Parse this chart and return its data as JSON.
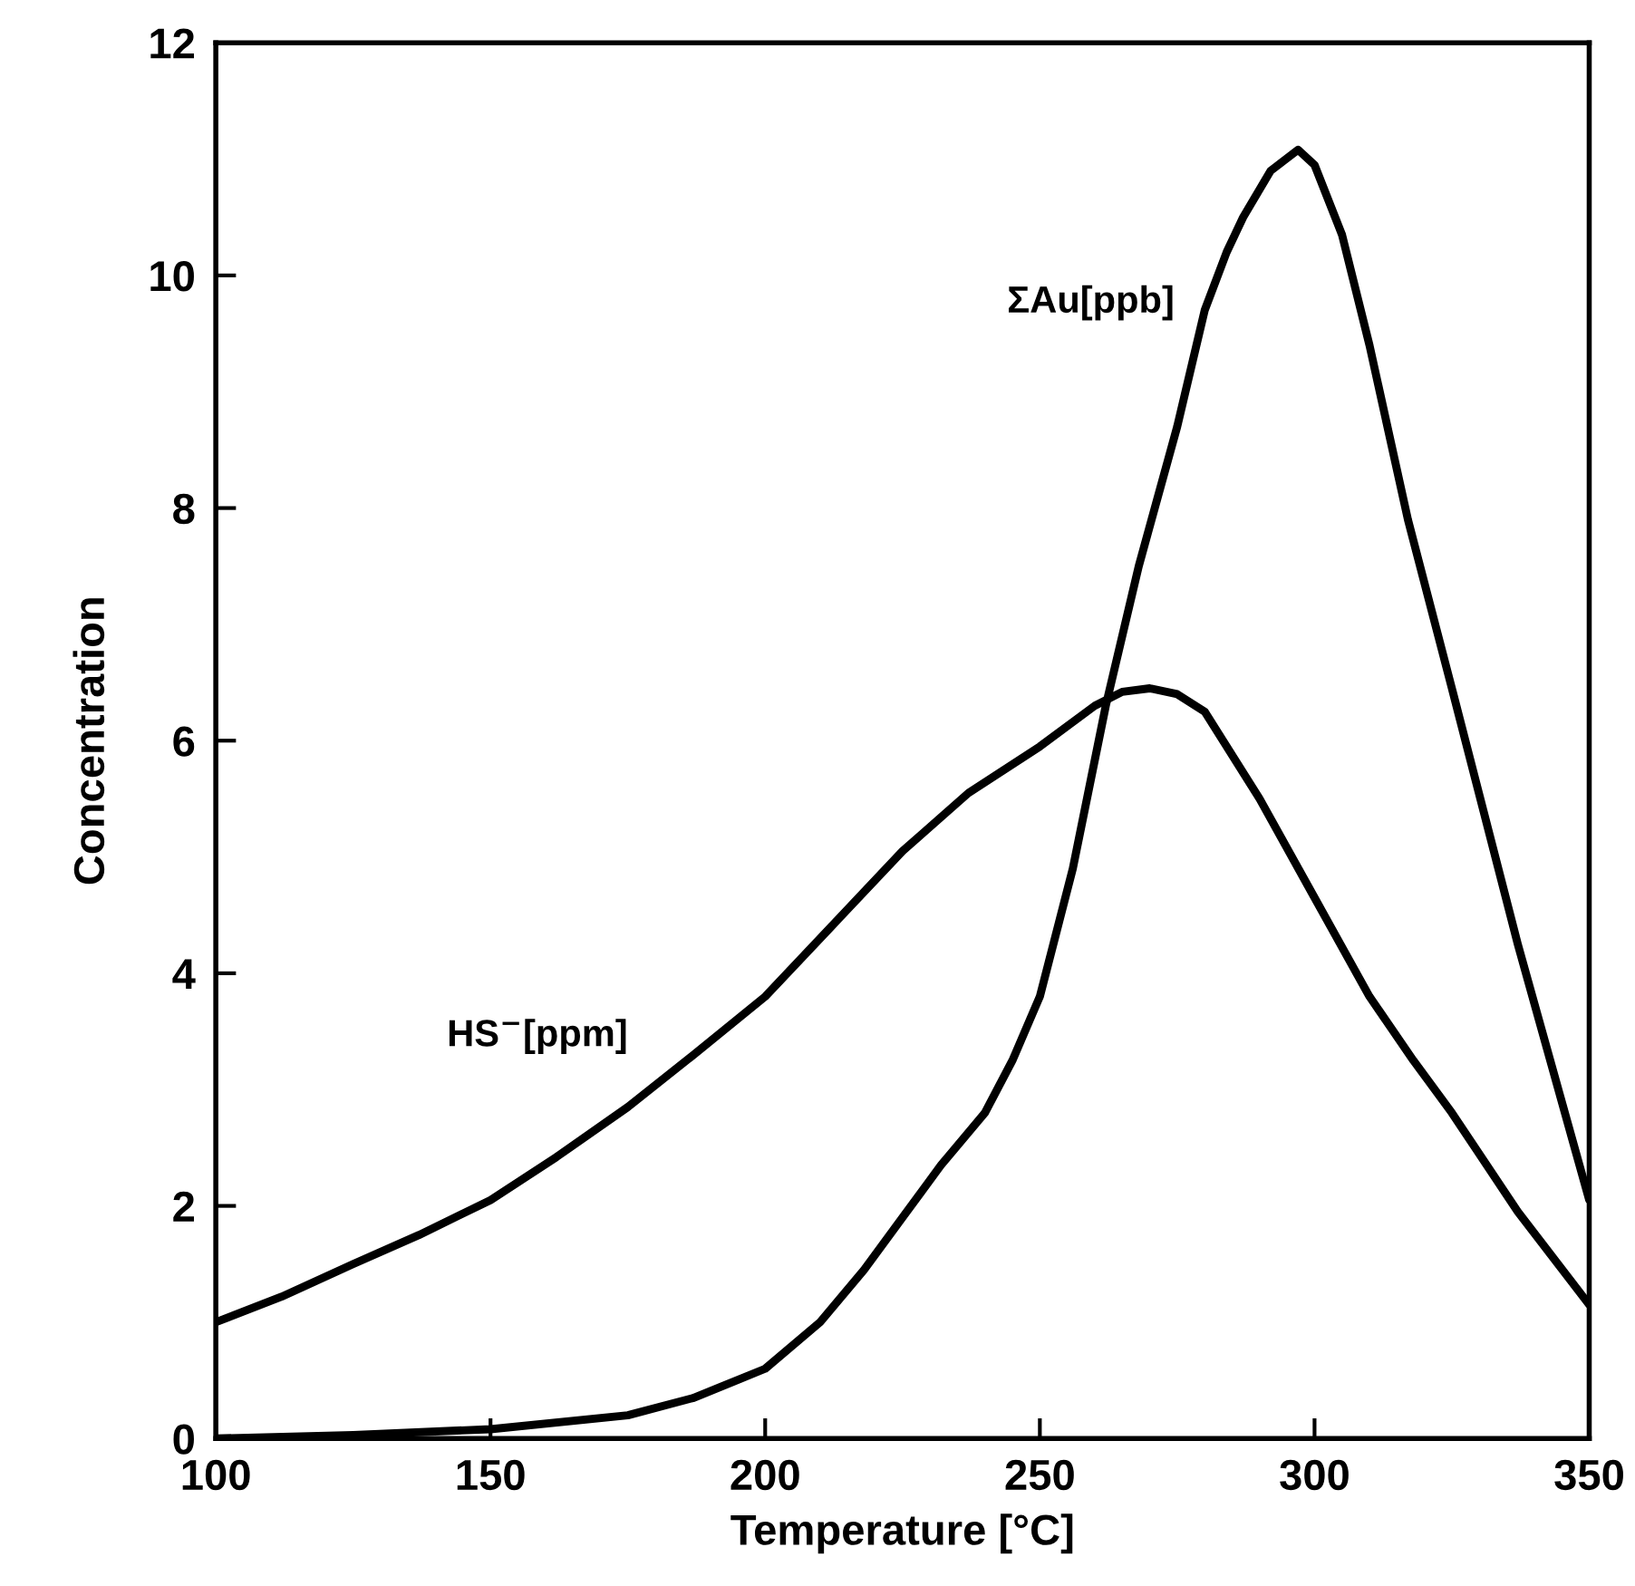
{
  "chart_data": {
    "type": "line",
    "xlabel": "Temperature [°C]",
    "ylabel": "Concentration",
    "xlim": [
      100,
      350
    ],
    "ylim": [
      0,
      12
    ],
    "xticks": [
      100,
      150,
      200,
      250,
      300,
      350
    ],
    "yticks": [
      0,
      2,
      4,
      6,
      8,
      10,
      12
    ],
    "grid": false,
    "legend": false,
    "marker": "none",
    "line_style": "solid",
    "series": [
      {
        "name": "HS$^{−}$[ppm]",
        "color": "#000000",
        "x": [
          100,
          112,
          125,
          137,
          150,
          162,
          175,
          187,
          200,
          212,
          225,
          237,
          250,
          260,
          265,
          270,
          275,
          280,
          290,
          300,
          310,
          318,
          325,
          337,
          350
        ],
        "values": [
          1.0,
          1.22,
          1.5,
          1.75,
          2.05,
          2.42,
          2.85,
          3.3,
          3.8,
          4.4,
          5.05,
          5.55,
          5.95,
          6.3,
          6.42,
          6.45,
          6.4,
          6.25,
          5.5,
          4.65,
          3.8,
          3.25,
          2.8,
          1.95,
          1.15
        ]
      },
      {
        "name": "ΣAu[ppb]",
        "color": "#000000",
        "x": [
          100,
          125,
          150,
          175,
          187,
          200,
          210,
          218,
          225,
          232,
          240,
          245,
          250,
          256,
          262,
          268,
          275,
          280,
          284,
          287,
          292,
          297,
          300,
          305,
          310,
          317,
          325,
          337,
          350
        ],
        "values": [
          0,
          0.03,
          0.08,
          0.2,
          0.35,
          0.6,
          1.0,
          1.45,
          1.9,
          2.35,
          2.8,
          3.25,
          3.8,
          4.9,
          6.3,
          7.5,
          8.7,
          9.7,
          10.2,
          10.5,
          10.9,
          11.08,
          10.95,
          10.35,
          9.4,
          7.9,
          6.45,
          4.25,
          2.05
        ]
      }
    ]
  }
}
